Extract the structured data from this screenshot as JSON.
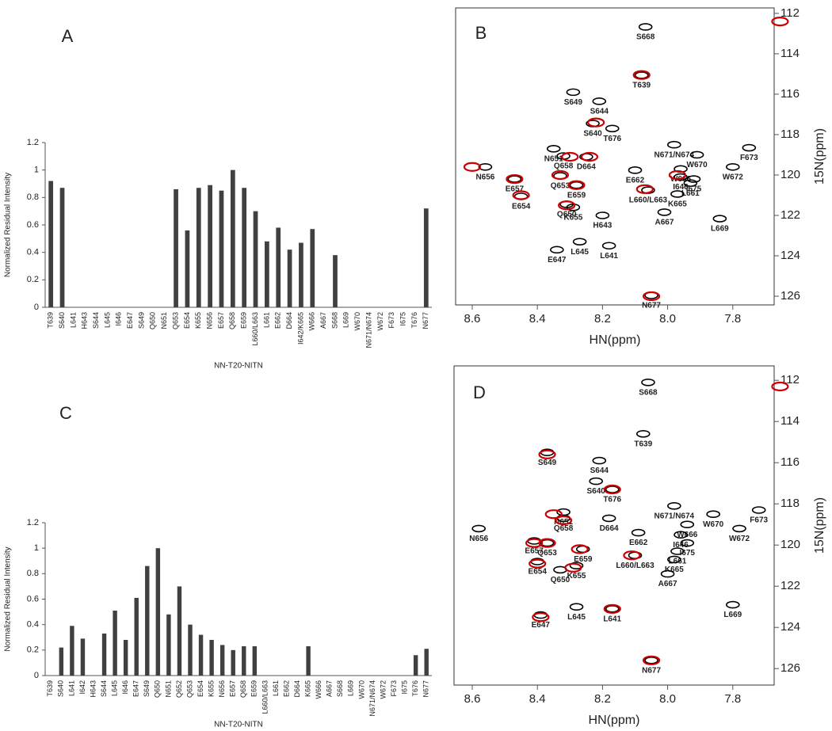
{
  "chart_data": [
    {
      "type": "bar",
      "title": "A",
      "ylabel": "Normalized Residual Intensity",
      "xlabel": "NN-T20-NITN",
      "color": "#404040",
      "categories": [
        "T639",
        "S640",
        "L641",
        "H643",
        "S644",
        "L645",
        "I646",
        "E647",
        "S649",
        "Q650",
        "N651",
        "Q653",
        "E654",
        "K655",
        "N656",
        "E657",
        "Q658",
        "E659",
        "L660/L663",
        "L661",
        "E662",
        "D664",
        "I642/K665",
        "W666",
        "A667",
        "S668",
        "L669",
        "W670",
        "N671/N674",
        "W672",
        "F673",
        "I675",
        "T676",
        "N677"
      ],
      "values": [
        0.92,
        0.87,
        0,
        0,
        0,
        0,
        0,
        0,
        0,
        0,
        0,
        0.86,
        0.56,
        0.87,
        0.89,
        0.85,
        1.0,
        0.87,
        0.7,
        0.48,
        0.58,
        0.42,
        0.47,
        0.57,
        0,
        0.38,
        0,
        0,
        0,
        0,
        0,
        0,
        0,
        0.72
      ],
      "ylim": [
        0,
        1.2
      ],
      "yticks": [
        0,
        0.2,
        0.4,
        0.6,
        0.8,
        1,
        1.2
      ]
    },
    {
      "type": "scatter",
      "title": "B",
      "xlabel": "HN(ppm)",
      "ylabel": "15N(ppm)",
      "xlim": [
        8.651,
        7.673
      ],
      "ylim": [
        126.43,
        111.73
      ],
      "xticks": [
        8.6,
        8.4,
        8.2,
        {
          "value": 8,
          "label": "8.0"
        },
        7.8
      ],
      "yticks": [
        112,
        114,
        116,
        118,
        120,
        122,
        124,
        126
      ],
      "peak_labels": [
        "S668",
        "T639",
        "S649",
        "S644",
        "S640",
        "T676",
        "N671/N674",
        "N651",
        "F673",
        "W670",
        "D664",
        "Q658",
        "N656",
        "W672",
        "Q653",
        "E662",
        "W666",
        "I646",
        "E657",
        "E659",
        "L660/L663",
        "L661",
        "I675",
        "K665",
        "E654",
        "Q650",
        "K655",
        "H643",
        "A667",
        "L669",
        "L645",
        "E647",
        "L641",
        "N677"
      ],
      "series": [
        {
          "color": "#000000",
          "x": [
            8.068,
            8.08,
            8.29,
            8.21,
            8.23,
            8.17,
            7.98,
            8.35,
            7.75,
            7.91,
            8.25,
            8.32,
            8.56,
            7.8,
            8.33,
            8.1,
            7.96,
            7.96,
            8.47,
            8.28,
            8.06,
            7.93,
            7.92,
            7.97,
            8.45,
            8.31,
            8.29,
            8.2,
            8.01,
            7.84,
            8.27,
            8.34,
            8.18,
            8.05
          ],
          "y": [
            112.67,
            115.06,
            115.9,
            116.35,
            117.45,
            117.7,
            118.5,
            118.7,
            118.65,
            119.0,
            119.1,
            119.06,
            119.6,
            119.6,
            120.04,
            119.76,
            119.7,
            120.1,
            120.2,
            120.5,
            120.75,
            120.4,
            120.2,
            120.94,
            121.06,
            121.45,
            121.6,
            122.0,
            121.84,
            122.16,
            123.3,
            123.7,
            123.5,
            125.96
          ]
        },
        {
          "color": "#cc0000",
          "x": [
            8.6,
            8.47,
            8.33,
            8.3,
            8.28,
            8.45,
            8.31,
            8.07,
            7.97,
            8.08,
            8.22,
            8.05,
            8.24,
            7.655
          ],
          "y": [
            119.6,
            120.2,
            120.0,
            119.1,
            120.5,
            121.0,
            121.5,
            120.7,
            120.0,
            115.05,
            117.4,
            126.0,
            119.1,
            112.4
          ]
        }
      ]
    },
    {
      "type": "bar",
      "title": "C",
      "ylabel": "Normalized Residual Intensity",
      "xlabel": "NN-T20-NITN",
      "color": "#404040",
      "categories": [
        "T639",
        "S640",
        "L641",
        "I642",
        "H643",
        "S644",
        "L645",
        "I646",
        "E647",
        "S649",
        "Q650",
        "N651",
        "Q652",
        "Q653",
        "E654",
        "K655",
        "N656",
        "E657",
        "Q658",
        "E659",
        "L660/L663",
        "L661",
        "E662",
        "D664",
        "K665",
        "W666",
        "A667",
        "S668",
        "L669",
        "W670",
        "N671/N674",
        "W672",
        "F673",
        "I675",
        "T676",
        "N677"
      ],
      "values": [
        0,
        0.22,
        0.39,
        0.29,
        0,
        0.33,
        0.51,
        0.28,
        0.61,
        0.86,
        1.0,
        0.48,
        0.7,
        0.4,
        0.32,
        0.28,
        0.24,
        0.2,
        0.23,
        0.23,
        0,
        0,
        0,
        0,
        0.23,
        0,
        0,
        0,
        0,
        0,
        0,
        0,
        0,
        0,
        0.16,
        0.21
      ],
      "ylim": [
        0,
        1.2
      ],
      "yticks": [
        0,
        0.2,
        0.4,
        0.6,
        0.8,
        1,
        1.2
      ]
    },
    {
      "type": "scatter",
      "title": "D",
      "xlabel": "HN(ppm)",
      "ylabel": "15N(ppm)",
      "xlim": [
        8.656,
        7.673
      ],
      "ylim": [
        126.8,
        111.3
      ],
      "xticks": [
        8.6,
        8.4,
        8.2,
        {
          "value": 8,
          "label": "8.0"
        },
        7.8
      ],
      "yticks": [
        112,
        114,
        116,
        118,
        120,
        122,
        124,
        126
      ],
      "peak_labels": [
        "S668",
        "T639",
        "S649",
        "S644",
        "S640",
        "T676",
        "N671/N674",
        "N651",
        "W670",
        "F673",
        "Q658",
        "D664",
        "N656",
        "W666",
        "W672",
        "E662",
        "I646",
        "E657",
        "Q653",
        "E659",
        "L661",
        "I675",
        "L660/L663",
        "K665",
        "E654",
        "Q650",
        "K655",
        "A667",
        "L669",
        "L645",
        "E647",
        "L641",
        "N677"
      ],
      "series": [
        {
          "color": "#000000",
          "x": [
            8.06,
            8.075,
            8.37,
            8.21,
            8.22,
            8.17,
            7.98,
            8.32,
            7.86,
            7.72,
            8.32,
            8.18,
            8.58,
            7.94,
            7.78,
            8.09,
            7.96,
            8.41,
            8.37,
            8.26,
            7.97,
            7.94,
            8.1,
            7.98,
            8.4,
            8.33,
            8.28,
            8.0,
            7.8,
            8.28,
            8.39,
            8.17,
            8.05
          ],
          "y": [
            112.1,
            114.6,
            115.5,
            115.9,
            116.9,
            117.3,
            118.1,
            118.4,
            118.5,
            118.3,
            118.7,
            118.7,
            119.2,
            119.0,
            119.2,
            119.4,
            119.5,
            119.8,
            119.9,
            120.2,
            120.3,
            119.9,
            120.5,
            120.7,
            120.8,
            121.2,
            121.0,
            121.4,
            122.9,
            123.0,
            123.4,
            123.1,
            125.6
          ]
        },
        {
          "color": "#cc0000",
          "x": [
            8.37,
            8.32,
            8.41,
            8.37,
            8.27,
            8.4,
            8.29,
            8.11,
            8.17,
            8.39,
            8.05,
            8.17,
            8.35,
            7.655
          ],
          "y": [
            115.6,
            118.8,
            119.9,
            119.9,
            120.2,
            120.9,
            121.1,
            120.5,
            117.3,
            123.5,
            125.6,
            123.1,
            118.5,
            112.3
          ]
        }
      ]
    }
  ]
}
